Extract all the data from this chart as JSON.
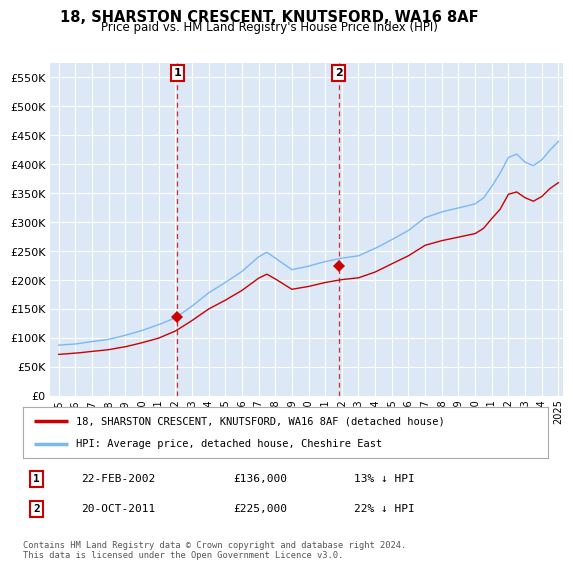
{
  "title": "18, SHARSTON CRESCENT, KNUTSFORD, WA16 8AF",
  "subtitle": "Price paid vs. HM Land Registry's House Price Index (HPI)",
  "legend_line1": "18, SHARSTON CRESCENT, KNUTSFORD, WA16 8AF (detached house)",
  "legend_line2": "HPI: Average price, detached house, Cheshire East",
  "annotation1_date": "22-FEB-2002",
  "annotation1_price": "£136,000",
  "annotation1_hpi": "13% ↓ HPI",
  "annotation2_date": "20-OCT-2011",
  "annotation2_price": "£225,000",
  "annotation2_hpi": "22% ↓ HPI",
  "footer": "Contains HM Land Registry data © Crown copyright and database right 2024.\nThis data is licensed under the Open Government Licence v3.0.",
  "hpi_color": "#7ab8f5",
  "price_color": "#cc0000",
  "marker_color": "#cc0000",
  "plot_bg_color": "#dce8f5",
  "ylim": [
    0,
    575000
  ],
  "yticks": [
    0,
    50000,
    100000,
    150000,
    200000,
    250000,
    300000,
    350000,
    400000,
    450000,
    500000,
    550000
  ],
  "x_start_year": 1995,
  "x_end_year": 2025,
  "purchase1_year": 2002.13,
  "purchase1_price": 136000,
  "purchase2_year": 2011.8,
  "purchase2_price": 225000
}
